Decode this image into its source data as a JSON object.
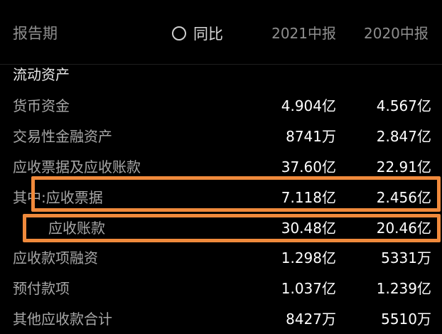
{
  "header": {
    "period_label": "报告期",
    "yoy_label": "同比",
    "col1": "2021中报",
    "col2": "2020中报"
  },
  "section_title": "流动资产",
  "rows": [
    {
      "label": "货币资金",
      "v2021": "4.904亿",
      "v2020": "4.567亿"
    },
    {
      "label": "交易性金融资产",
      "v2021": "8741万",
      "v2020": "2.847亿"
    },
    {
      "label": "应收票据及应收账款",
      "v2021": "37.60亿",
      "v2020": "22.91亿"
    },
    {
      "label": "其中:应收票据",
      "v2021": "7.118亿",
      "v2020": "2.456亿"
    },
    {
      "label": "应收账款",
      "v2021": "30.48亿",
      "v2020": "20.46亿"
    },
    {
      "label": "应收款项融资",
      "v2021": "1.298亿",
      "v2020": "5331万"
    },
    {
      "label": "预付款项",
      "v2021": "1.037亿",
      "v2020": "1.239亿"
    },
    {
      "label": "其他应收款合计",
      "v2021": "8427万",
      "v2020": "5510万"
    }
  ],
  "colors": {
    "background": "#000000",
    "highlight": "#f08a3c",
    "label_text": "#a8a8a8",
    "value_text": "#ffffff"
  },
  "icons": {
    "yoy_toggle": "radio-circle-icon"
  }
}
